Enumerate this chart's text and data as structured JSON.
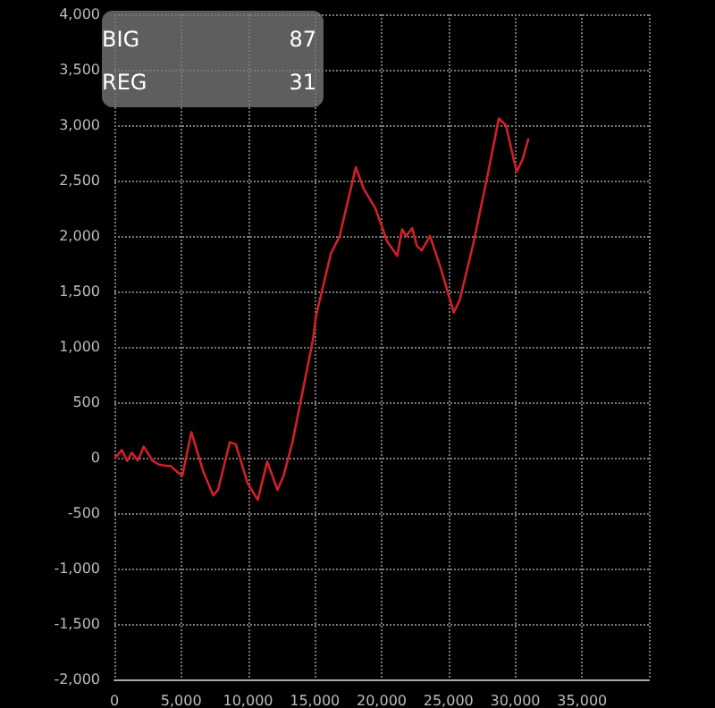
{
  "chart_data": {
    "type": "line",
    "x": [
      0,
      560,
      960,
      1300,
      1760,
      2200,
      2870,
      3300,
      3730,
      4200,
      4870,
      5090,
      5760,
      6640,
      7400,
      7760,
      8640,
      9090,
      9970,
      10730,
      11440,
      12200,
      12640,
      13310,
      14870,
      15090,
      16200,
      16860,
      18070,
      18640,
      19530,
      20420,
      21170,
      21530,
      21840,
      22290,
      22640,
      23000,
      23620,
      24420,
      25400,
      25840,
      26860,
      27970,
      28770,
      29300,
      30100,
      30550,
      30990
    ],
    "series": [
      {
        "color": "#d0202a",
        "values": [
          -10,
          70,
          -30,
          45,
          -25,
          100,
          -30,
          -60,
          -70,
          -75,
          -145,
          -160,
          230,
          -120,
          -340,
          -290,
          140,
          120,
          -230,
          -380,
          -35,
          -290,
          -170,
          130,
          1070,
          1280,
          1840,
          2000,
          2620,
          2430,
          2250,
          1950,
          1820,
          2060,
          2000,
          2070,
          1910,
          1870,
          2000,
          1710,
          1310,
          1420,
          1930,
          2570,
          3060,
          3000,
          2580,
          2690,
          2880
        ]
      }
    ],
    "xlim": [
      0,
      40000
    ],
    "xticks": [
      0,
      {
        "value": 5000,
        "label": "5,000"
      },
      {
        "value": 10000,
        "label": "10,000"
      },
      {
        "value": 15000,
        "label": "15,000"
      },
      {
        "value": 20000,
        "label": "20,000"
      },
      {
        "value": 25000,
        "label": "25,000"
      },
      {
        "value": 30000,
        "label": "30,000"
      },
      {
        "value": 35000,
        "label": "35,000"
      },
      {
        "value": 40000,
        "label": null
      }
    ],
    "ylim": [
      -2000,
      4000
    ],
    "yticks": [
      {
        "value": -2000,
        "label": "-2,000"
      },
      {
        "value": -1500,
        "label": "-1,500"
      },
      {
        "value": -1000,
        "label": "-1,000"
      },
      -500,
      0,
      500,
      {
        "value": 1000,
        "label": "1,000"
      },
      {
        "value": 1500,
        "label": "1,500"
      },
      {
        "value": 2000,
        "label": "2,000"
      },
      {
        "value": 2500,
        "label": "2,500"
      },
      {
        "value": 3000,
        "label": "3,000"
      },
      {
        "value": 3500,
        "label": "3,500"
      },
      {
        "value": 4000,
        "label": "4,000"
      }
    ],
    "grid": true,
    "marker": "none",
    "line_style": "solid",
    "annotations": [
      "BIG",
      "87",
      "REG",
      "31"
    ]
  }
}
